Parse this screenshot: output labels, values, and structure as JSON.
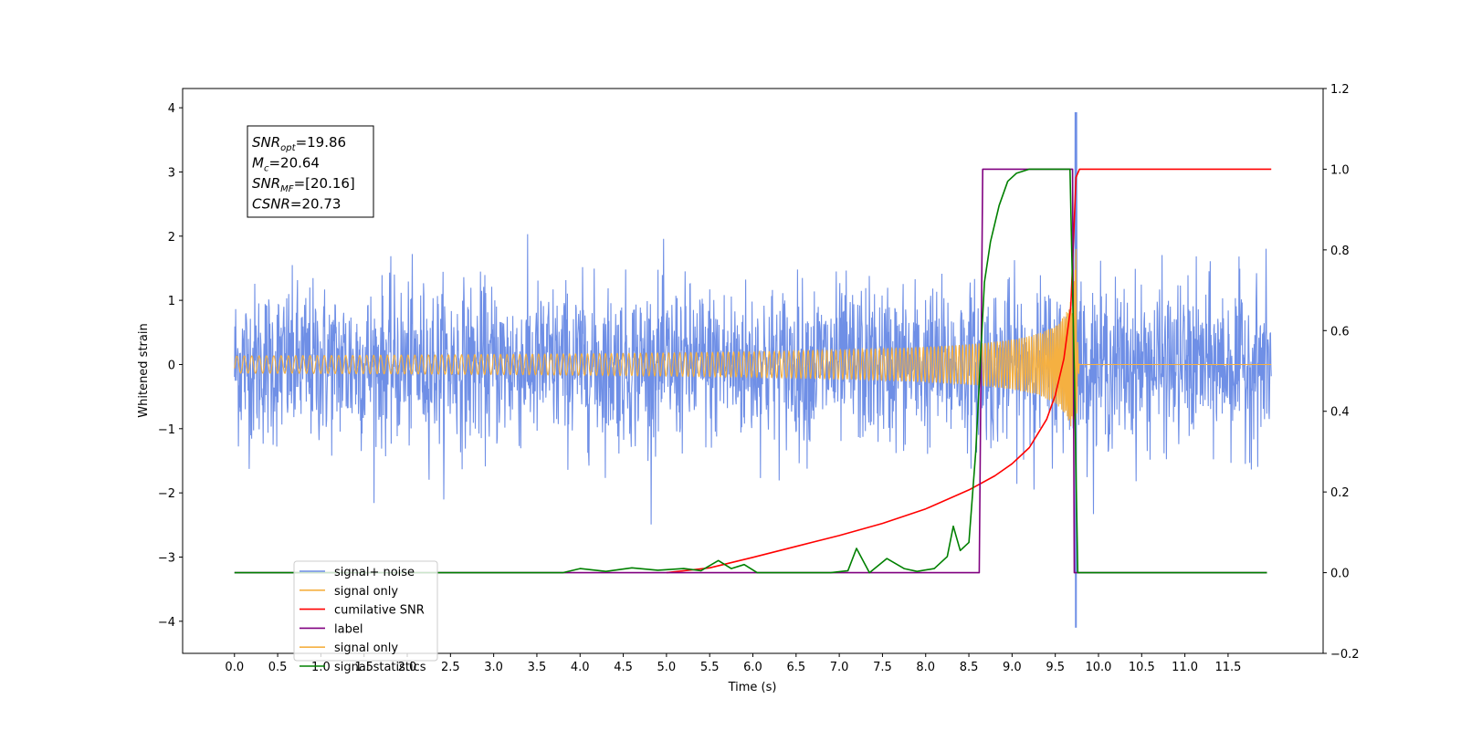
{
  "chart_data": {
    "type": "line",
    "xlabel": "Time (s)",
    "ylabel_left": "Whitened strain",
    "ylabel_right": "",
    "xlim": [
      -0.6,
      12.6
    ],
    "ylim_left": [
      -4.5,
      4.3
    ],
    "ylim_right": [
      -0.2,
      1.2
    ],
    "x_ticks": [
      0.0,
      0.5,
      1.0,
      1.5,
      2.0,
      2.5,
      3.0,
      3.5,
      4.0,
      4.5,
      5.0,
      5.5,
      6.0,
      6.5,
      7.0,
      7.5,
      8.0,
      8.5,
      9.0,
      9.5,
      10.0,
      10.5,
      11.0,
      11.5
    ],
    "x_tick_labels": [
      "0.0",
      "0.5",
      "1.0",
      "1.5",
      "2.0",
      "2.5",
      "3.0",
      "3.5",
      "4.0",
      "4.5",
      "5.0",
      "5.5",
      "6.0",
      "6.5",
      "7.0",
      "7.5",
      "8.0",
      "8.5",
      "9.0",
      "9.5",
      "10.0",
      "10.5",
      "11.0",
      "11.5"
    ],
    "y_ticks_left": [
      -4,
      -3,
      -2,
      -1,
      0,
      1,
      2,
      3,
      4
    ],
    "y_tick_labels_left": [
      "−4",
      "−3",
      "−2",
      "−1",
      "0",
      "1",
      "2",
      "3",
      "4"
    ],
    "y_ticks_right": [
      -0.2,
      0.0,
      0.2,
      0.4,
      0.6,
      0.8,
      1.0,
      1.2
    ],
    "y_tick_labels_right": [
      "−0.2",
      "0.0",
      "0.2",
      "0.4",
      "0.6",
      "0.8",
      "1.0",
      "1.2"
    ],
    "grid": false,
    "legend_position": "lower-left",
    "annotation": {
      "position": "upper-left",
      "lines": [
        {
          "sym": "SNR",
          "sub": "opt",
          "value": "=19.86"
        },
        {
          "sym": "M",
          "sub": "c",
          "value": "=20.64"
        },
        {
          "sym": "SNR",
          "sub": "MF",
          "value": "=[20.16]"
        },
        {
          "sym": "CSNR",
          "sub": "",
          "value": "=20.73"
        }
      ]
    },
    "series": [
      {
        "name": "signal+ noise",
        "axis": "left",
        "color": "#6f8fe6",
        "style": "noise",
        "x_range": [
          0.0,
          12.0
        ],
        "amplitude_envelope": [
          1.8,
          -1.8
        ],
        "peak_at": 9.74,
        "peak_values": [
          3.93,
          -4.1
        ]
      },
      {
        "name": "signal only",
        "axis": "left",
        "color": "#f5b041",
        "style": "chirp",
        "x_range": [
          0.0,
          12.0
        ],
        "merger_time": 9.74,
        "peak_amplitude": 1.8
      },
      {
        "name": "cumilative SNR",
        "axis": "right",
        "color": "#ff0000",
        "x": [
          5.0,
          5.5,
          6.0,
          6.5,
          7.0,
          7.5,
          8.0,
          8.5,
          8.8,
          9.0,
          9.2,
          9.4,
          9.5,
          9.6,
          9.68,
          9.74,
          9.78,
          12.0
        ],
        "y": [
          0.0,
          0.012,
          0.038,
          0.065,
          0.092,
          0.122,
          0.158,
          0.205,
          0.24,
          0.27,
          0.31,
          0.38,
          0.44,
          0.53,
          0.66,
          0.98,
          1.0,
          1.0
        ]
      },
      {
        "name": "label",
        "axis": "right",
        "color": "#800080",
        "x": [
          0.0,
          8.62,
          8.66,
          9.7,
          9.72,
          11.95
        ],
        "y": [
          0.0,
          0.0,
          1.0,
          1.0,
          0.0,
          0.0
        ]
      },
      {
        "name": "signal only",
        "axis": "right",
        "color": "#f5b041",
        "hidden_by_overlap": true,
        "x": [],
        "y": []
      },
      {
        "name": "signal statistics",
        "axis": "right",
        "color": "#008000",
        "x": [
          0.0,
          3.8,
          4.0,
          4.3,
          4.6,
          4.9,
          5.2,
          5.4,
          5.6,
          5.75,
          5.9,
          6.05,
          6.9,
          7.1,
          7.2,
          7.35,
          7.55,
          7.75,
          7.9,
          8.1,
          8.25,
          8.32,
          8.4,
          8.5,
          8.58,
          8.68,
          8.75,
          8.85,
          8.95,
          9.05,
          9.2,
          9.5,
          9.67,
          9.72,
          9.76,
          11.95
        ],
        "y": [
          0.0,
          0.0,
          0.01,
          0.003,
          0.012,
          0.006,
          0.01,
          0.005,
          0.03,
          0.01,
          0.02,
          0.0,
          0.0,
          0.005,
          0.06,
          0.0,
          0.035,
          0.01,
          0.003,
          0.01,
          0.04,
          0.115,
          0.055,
          0.075,
          0.3,
          0.72,
          0.82,
          0.91,
          0.97,
          0.99,
          1.0,
          1.0,
          1.0,
          0.5,
          0.0,
          0.0
        ]
      }
    ],
    "legend": [
      {
        "label": "signal+ noise",
        "color": "#6f8fe6"
      },
      {
        "label": "signal only",
        "color": "#f5b041"
      },
      {
        "label": "cumilative SNR",
        "color": "#ff0000"
      },
      {
        "label": "label",
        "color": "#800080"
      },
      {
        "label": "signal only",
        "color": "#f5b041"
      },
      {
        "label": "signal statistics",
        "color": "#008000"
      }
    ]
  }
}
